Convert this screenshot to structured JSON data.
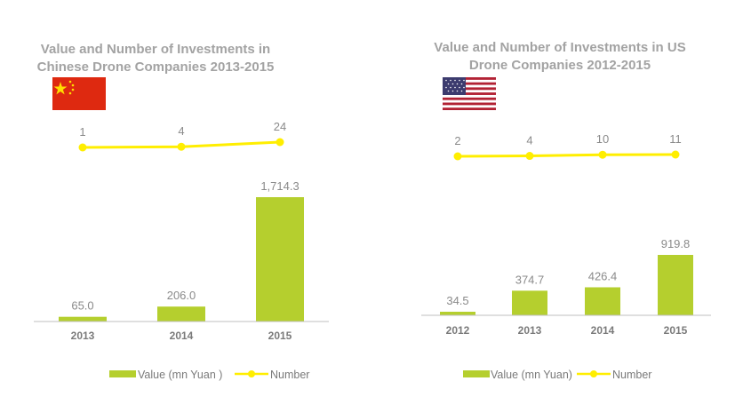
{
  "chart_data": [
    {
      "type": "bar+line",
      "title_lines": [
        "Value and Number of Investments in",
        "Chinese Drone Companies 2013-2015"
      ],
      "flag": "china-flag",
      "categories": [
        "2013",
        "2014",
        "2015"
      ],
      "series": [
        {
          "name": "Value (mn Yuan )",
          "type": "bar",
          "values": [
            65.0,
            206.0,
            1714.3
          ],
          "labels": [
            "65.0",
            "206.0",
            "1,714.3"
          ]
        },
        {
          "name": "Number",
          "type": "line",
          "values": [
            1,
            4,
            24
          ],
          "labels": [
            "1",
            "4",
            "24"
          ]
        }
      ],
      "ylim_bar": [
        0,
        1714.3
      ],
      "ylim_line": [
        1,
        24
      ],
      "legend": {
        "bar": "Value (mn Yuan )",
        "line": "Number"
      },
      "colors": {
        "bar": "#b5cf2e",
        "line": "#ffee00"
      }
    },
    {
      "type": "bar+line",
      "title_lines": [
        "Value and Number of Investments in US",
        "Drone Companies 2012-2015"
      ],
      "flag": "us-flag",
      "categories": [
        "2012",
        "2013",
        "2014",
        "2015"
      ],
      "series": [
        {
          "name": "Value (mn Yuan)",
          "type": "bar",
          "values": [
            34.5,
            374.7,
            426.4,
            919.8
          ],
          "labels": [
            "34.5",
            "374.7",
            "426.4",
            "919.8"
          ]
        },
        {
          "name": "Number",
          "type": "line",
          "values": [
            2,
            4,
            10,
            11
          ],
          "labels": [
            "2",
            "4",
            "10",
            "11"
          ]
        }
      ],
      "ylim_bar": [
        0,
        919.8
      ],
      "ylim_line": [
        2,
        11
      ],
      "legend": {
        "bar": "Value (mn Yuan)",
        "line": "Number"
      },
      "colors": {
        "bar": "#b5cf2e",
        "line": "#ffee00"
      }
    }
  ]
}
